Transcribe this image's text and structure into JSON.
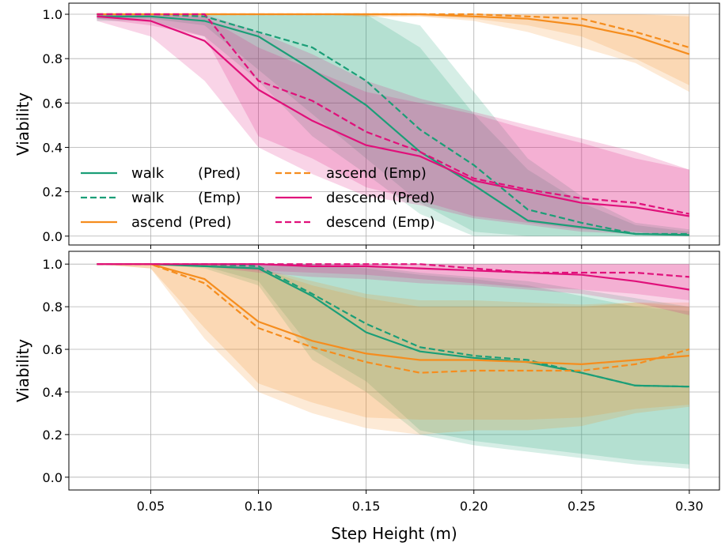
{
  "chart_data": {
    "type": "line",
    "xlabel": "Step Height (m)",
    "x_ticks": [
      "0.05",
      "0.10",
      "0.15",
      "0.20",
      "0.25",
      "0.30"
    ],
    "x_tick_values": [
      0.05,
      0.1,
      0.15,
      0.2,
      0.25,
      0.3
    ],
    "xlim": [
      0.012,
      0.314
    ],
    "grid": true,
    "colors": {
      "walk": "#1b9e77",
      "ascend": "#f58d1e",
      "descend": "#e0107a"
    },
    "x": [
      0.025,
      0.05,
      0.075,
      0.1,
      0.125,
      0.15,
      0.175,
      0.2,
      0.225,
      0.25,
      0.275,
      0.3
    ],
    "panels": [
      {
        "ylabel": "Viability",
        "ylim": [
          -0.04,
          1.05
        ],
        "y_ticks": [
          "0.0",
          "0.2",
          "0.4",
          "0.6",
          "0.8",
          "1.0"
        ],
        "y_tick_values": [
          0.0,
          0.2,
          0.4,
          0.6,
          0.8,
          1.0
        ],
        "legend": {
          "placement": "lower-left",
          "entries": [
            {
              "series": 0,
              "name": "walk",
              "tag": "(Pred)"
            },
            {
              "series": 1,
              "name": "walk",
              "tag": "(Emp)"
            },
            {
              "series": 2,
              "name": "ascend",
              "tag": "(Pred)"
            },
            {
              "series": 3,
              "name": "ascend",
              "tag": "(Emp)"
            },
            {
              "series": 4,
              "name": "descend",
              "tag": "(Pred)"
            },
            {
              "series": 5,
              "name": "descend",
              "tag": "(Emp)"
            }
          ]
        },
        "series": [
          {
            "group": "walk",
            "style": "solid",
            "values": [
              0.99,
              0.99,
              0.97,
              0.9,
              0.75,
              0.59,
              0.38,
              0.23,
              0.07,
              0.04,
              0.01,
              0.005
            ],
            "band_low": [
              0.97,
              0.97,
              0.9,
              0.7,
              0.45,
              0.28,
              0.1,
              0.0,
              0.0,
              0.0,
              0.0,
              0.0
            ],
            "band_high": [
              1.0,
              1.0,
              1.0,
              1.0,
              1.0,
              1.0,
              0.85,
              0.55,
              0.3,
              0.15,
              0.05,
              0.02
            ]
          },
          {
            "group": "walk",
            "style": "dashed",
            "values": [
              1.0,
              1.0,
              0.99,
              0.92,
              0.85,
              0.7,
              0.48,
              0.32,
              0.12,
              0.06,
              0.01,
              0.01
            ],
            "band_low": [
              0.98,
              0.98,
              0.95,
              0.75,
              0.55,
              0.35,
              0.15,
              0.02,
              0.0,
              0.0,
              0.0,
              0.0
            ],
            "band_high": [
              1.0,
              1.0,
              1.0,
              1.0,
              1.0,
              1.0,
              0.95,
              0.65,
              0.35,
              0.18,
              0.06,
              0.03
            ]
          },
          {
            "group": "ascend",
            "style": "solid",
            "values": [
              1.0,
              1.0,
              1.0,
              1.0,
              1.0,
              1.0,
              1.0,
              0.99,
              0.98,
              0.95,
              0.9,
              0.82
            ],
            "band_low": [
              1.0,
              1.0,
              1.0,
              1.0,
              1.0,
              0.99,
              0.99,
              0.97,
              0.92,
              0.85,
              0.78,
              0.65
            ],
            "band_high": [
              1.0,
              1.0,
              1.0,
              1.0,
              1.0,
              1.0,
              1.0,
              1.0,
              1.0,
              1.0,
              1.0,
              0.99
            ]
          },
          {
            "group": "ascend",
            "style": "dashed",
            "values": [
              1.0,
              1.0,
              1.0,
              1.0,
              1.0,
              1.0,
              1.0,
              1.0,
              0.99,
              0.98,
              0.92,
              0.85
            ],
            "band_low": [
              1.0,
              1.0,
              1.0,
              1.0,
              1.0,
              0.99,
              0.99,
              0.98,
              0.95,
              0.9,
              0.8,
              0.68
            ],
            "band_high": [
              1.0,
              1.0,
              1.0,
              1.0,
              1.0,
              1.0,
              1.0,
              1.0,
              1.0,
              1.0,
              1.0,
              1.0
            ]
          },
          {
            "group": "descend",
            "style": "solid",
            "values": [
              0.99,
              0.97,
              0.88,
              0.66,
              0.52,
              0.41,
              0.36,
              0.25,
              0.2,
              0.15,
              0.13,
              0.09
            ],
            "band_low": [
              0.97,
              0.9,
              0.7,
              0.4,
              0.28,
              0.18,
              0.14,
              0.08,
              0.05,
              0.02,
              0.01,
              0.0
            ],
            "band_high": [
              1.0,
              1.0,
              0.99,
              0.85,
              0.75,
              0.65,
              0.6,
              0.55,
              0.48,
              0.42,
              0.35,
              0.3
            ]
          },
          {
            "group": "descend",
            "style": "dashed",
            "values": [
              1.0,
              1.0,
              1.0,
              0.7,
              0.61,
              0.47,
              0.38,
              0.26,
              0.21,
              0.17,
              0.15,
              0.1
            ],
            "band_low": [
              0.98,
              0.95,
              0.9,
              0.45,
              0.35,
              0.22,
              0.16,
              0.09,
              0.06,
              0.03,
              0.02,
              0.0
            ],
            "band_high": [
              1.0,
              1.0,
              1.0,
              0.92,
              0.82,
              0.7,
              0.62,
              0.56,
              0.5,
              0.44,
              0.38,
              0.3
            ]
          }
        ]
      },
      {
        "ylabel": "Viability",
        "ylim": [
          -0.06,
          1.06
        ],
        "y_ticks": [
          "0.0",
          "0.2",
          "0.4",
          "0.6",
          "0.8",
          "1.0"
        ],
        "y_tick_values": [
          0.0,
          0.2,
          0.4,
          0.6,
          0.8,
          1.0
        ],
        "series": [
          {
            "group": "walk",
            "style": "solid",
            "values": [
              1.0,
              1.0,
              0.99,
              0.98,
              0.85,
              0.68,
              0.59,
              0.56,
              0.54,
              0.49,
              0.43,
              0.425
            ],
            "band_low": [
              1.0,
              1.0,
              0.98,
              0.9,
              0.55,
              0.4,
              0.2,
              0.15,
              0.12,
              0.09,
              0.06,
              0.04
            ],
            "band_high": [
              1.0,
              1.0,
              1.0,
              1.0,
              1.0,
              0.98,
              0.95,
              0.93,
              0.9,
              0.85,
              0.8,
              0.78
            ]
          },
          {
            "group": "walk",
            "style": "dashed",
            "values": [
              1.0,
              1.0,
              1.0,
              0.99,
              0.86,
              0.72,
              0.61,
              0.57,
              0.55,
              0.49,
              0.43,
              0.425
            ],
            "band_low": [
              1.0,
              1.0,
              0.99,
              0.92,
              0.6,
              0.45,
              0.22,
              0.17,
              0.14,
              0.11,
              0.08,
              0.06
            ],
            "band_high": [
              1.0,
              1.0,
              1.0,
              1.0,
              1.0,
              0.99,
              0.96,
              0.94,
              0.92,
              0.88,
              0.84,
              0.8
            ]
          },
          {
            "group": "ascend",
            "style": "solid",
            "values": [
              1.0,
              1.0,
              0.93,
              0.73,
              0.64,
              0.58,
              0.55,
              0.55,
              0.54,
              0.53,
              0.55,
              0.57
            ],
            "band_low": [
              1.0,
              0.98,
              0.7,
              0.44,
              0.35,
              0.28,
              0.27,
              0.27,
              0.27,
              0.28,
              0.32,
              0.34
            ],
            "band_high": [
              1.0,
              1.0,
              1.0,
              0.98,
              0.92,
              0.86,
              0.83,
              0.83,
              0.82,
              0.81,
              0.82,
              0.8
            ]
          },
          {
            "group": "ascend",
            "style": "dashed",
            "values": [
              1.0,
              1.0,
              0.91,
              0.7,
              0.61,
              0.54,
              0.49,
              0.5,
              0.5,
              0.5,
              0.53,
              0.6
            ],
            "band_low": [
              1.0,
              0.98,
              0.65,
              0.4,
              0.3,
              0.23,
              0.2,
              0.22,
              0.22,
              0.24,
              0.3,
              0.33
            ],
            "band_high": [
              1.0,
              1.0,
              1.0,
              0.98,
              0.9,
              0.84,
              0.8,
              0.8,
              0.8,
              0.8,
              0.82,
              0.82
            ]
          },
          {
            "group": "descend",
            "style": "solid",
            "values": [
              1.0,
              1.0,
              1.0,
              1.0,
              0.99,
              0.99,
              0.98,
              0.97,
              0.96,
              0.95,
              0.92,
              0.88
            ],
            "band_low": [
              1.0,
              1.0,
              0.99,
              0.96,
              0.94,
              0.93,
              0.91,
              0.9,
              0.88,
              0.86,
              0.82,
              0.76
            ],
            "band_high": [
              1.0,
              1.0,
              1.0,
              1.0,
              1.0,
              1.0,
              1.0,
              1.0,
              1.0,
              1.0,
              1.0,
              1.0
            ]
          },
          {
            "group": "descend",
            "style": "dashed",
            "values": [
              1.0,
              1.0,
              1.0,
              1.0,
              1.0,
              1.0,
              1.0,
              0.98,
              0.96,
              0.96,
              0.96,
              0.94
            ],
            "band_low": [
              1.0,
              1.0,
              0.99,
              0.97,
              0.96,
              0.95,
              0.93,
              0.91,
              0.89,
              0.88,
              0.86,
              0.83
            ],
            "band_high": [
              1.0,
              1.0,
              1.0,
              1.0,
              1.0,
              1.0,
              1.0,
              1.0,
              1.0,
              1.0,
              1.0,
              1.0
            ]
          }
        ]
      }
    ]
  }
}
